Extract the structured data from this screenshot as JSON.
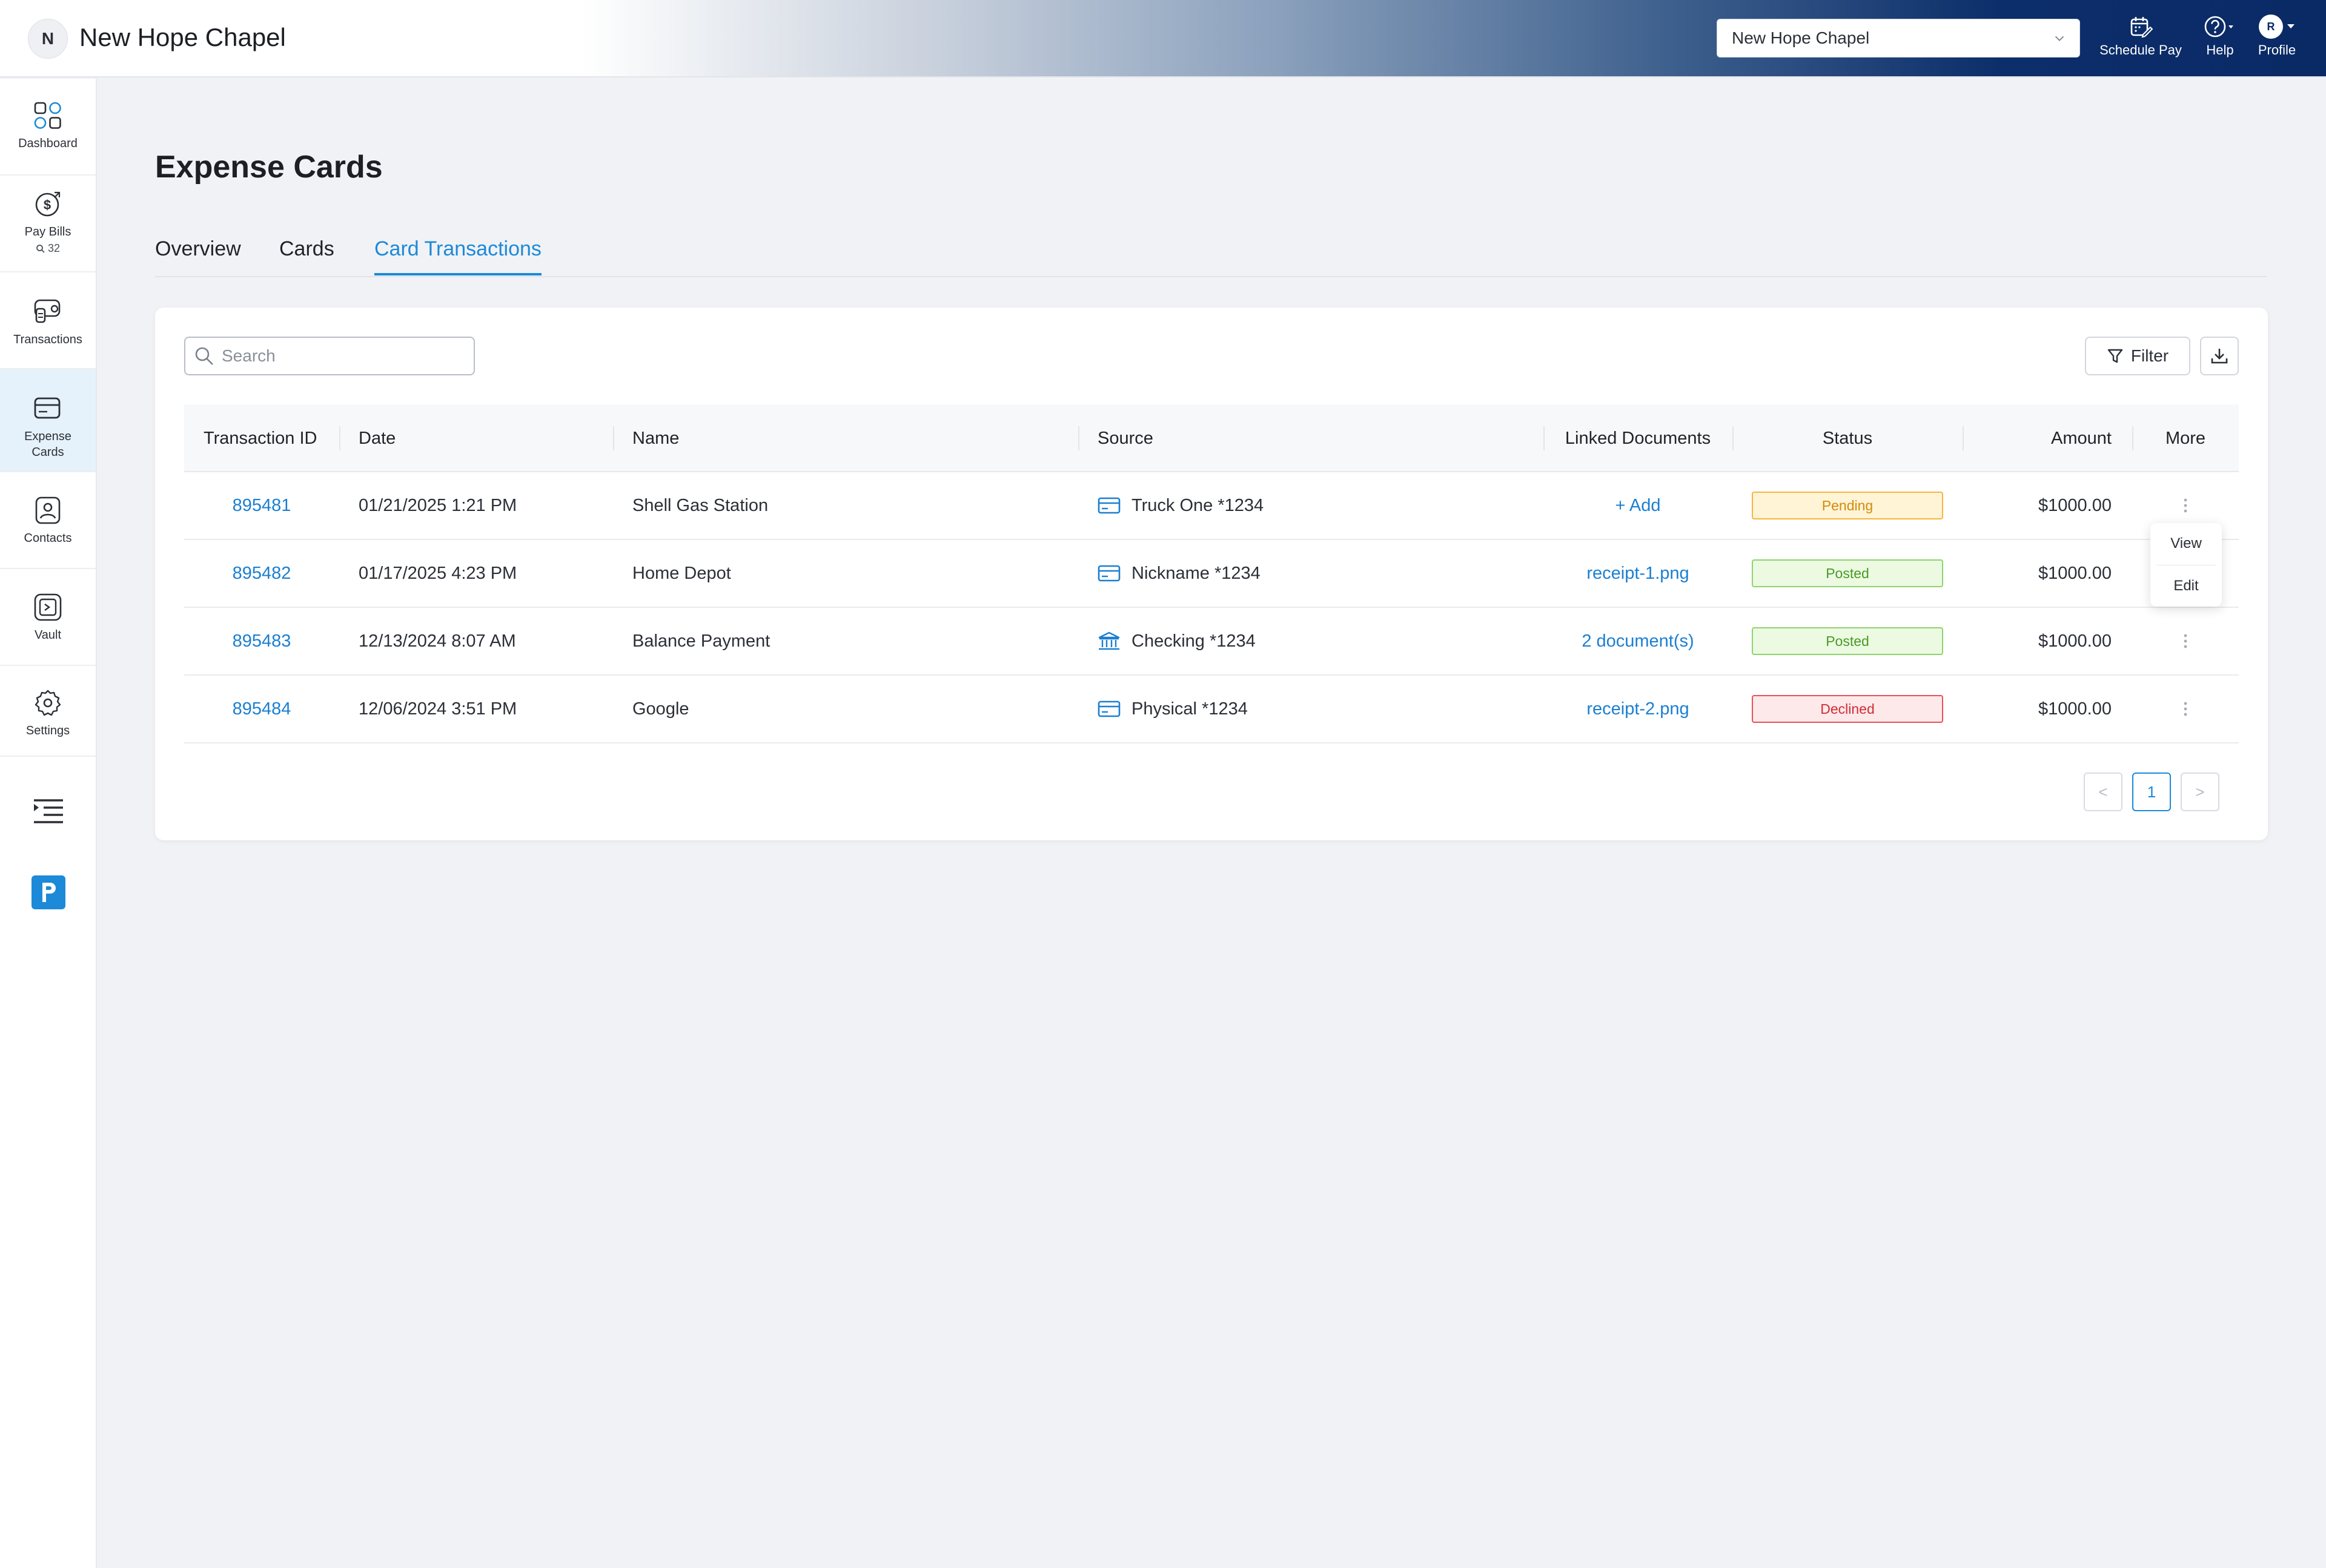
{
  "header": {
    "org_initial": "N",
    "org_name": "New Hope Chapel",
    "org_select_value": "New Hope Chapel",
    "schedule_pay_label": "Schedule Pay",
    "help_label": "Help",
    "profile_label": "Profile",
    "profile_initial": "R"
  },
  "sidebar": {
    "items": [
      {
        "label": "Dashboard",
        "icon": "dashboard-grid-icon"
      },
      {
        "label": "Pay Bills",
        "icon": "dollar-coin-icon",
        "badge": "32"
      },
      {
        "label": "Transactions",
        "icon": "transactions-icon"
      },
      {
        "label": "Expense Cards",
        "icon": "credit-card-icon"
      },
      {
        "label": "Contacts",
        "icon": "contact-icon"
      },
      {
        "label": "Vault",
        "icon": "vault-icon"
      },
      {
        "label": "Settings",
        "icon": "gear-icon"
      }
    ]
  },
  "page": {
    "title": "Expense Cards",
    "tabs": [
      "Overview",
      "Cards",
      "Card Transactions"
    ],
    "active_tab": "Card Transactions"
  },
  "toolbar": {
    "search_placeholder": "Search",
    "filter_label": "Filter"
  },
  "table": {
    "columns": [
      "Transaction ID",
      "Date",
      "Name",
      "Source",
      "Linked Documents",
      "Status",
      "Amount",
      "More"
    ],
    "rows": [
      {
        "id": "895481",
        "date": "01/21/2025 1:21 PM",
        "name": "Shell Gas Station",
        "source": "Truck One *1234",
        "source_type": "card",
        "doc": "+ Add",
        "status": "Pending",
        "amount": "$1000.00"
      },
      {
        "id": "895482",
        "date": "01/17/2025 4:23 PM",
        "name": "Home Depot",
        "source": "Nickname *1234",
        "source_type": "card",
        "doc": "receipt-1.png",
        "status": "Posted",
        "amount": "$1000.00"
      },
      {
        "id": "895483",
        "date": "12/13/2024 8:07 AM",
        "name": "Balance Payment",
        "source": "Checking *1234",
        "source_type": "bank",
        "doc": "2 document(s)",
        "status": "Posted",
        "amount": "$1000.00"
      },
      {
        "id": "895484",
        "date": "12/06/2024 3:51 PM",
        "name": "Google",
        "source": "Physical *1234",
        "source_type": "card",
        "doc": "receipt-2.png",
        "status": "Declined",
        "amount": "$1000.00"
      }
    ]
  },
  "context_menu": {
    "view_label": "View",
    "edit_label": "Edit"
  },
  "pagination": {
    "current_page": "1",
    "prev_symbol": "<",
    "next_symbol": ">"
  },
  "colors": {
    "accent": "#1c8ad8",
    "header_dark": "#0a2a66",
    "pending": "#f5b53d",
    "posted": "#8fd36d",
    "declined": "#e8505b"
  }
}
